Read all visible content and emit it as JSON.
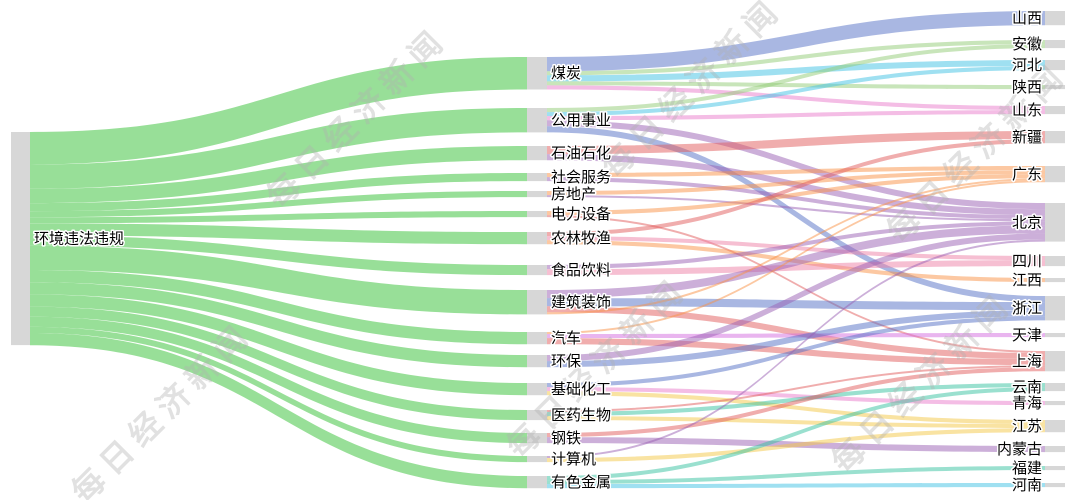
{
  "watermark": {
    "text": "每日经济新闻",
    "color": "rgba(175,175,175,0.38)"
  },
  "chart_data": {
    "type": "sankey",
    "title": "",
    "root": "环境违法违规",
    "industries": [
      "煤炭",
      "公用事业",
      "石油石化",
      "社会服务",
      "房地产",
      "电力设备",
      "农林牧渔",
      "食品饮料",
      "建筑装饰",
      "汽车",
      "环保",
      "基础化工",
      "医药生物",
      "钢铁",
      "计算机",
      "有色金属"
    ],
    "provinces": [
      "山西",
      "安徽",
      "河北",
      "陕西",
      "山东",
      "新疆",
      "广东",
      "北京",
      "四川",
      "江西",
      "浙江",
      "天津",
      "上海",
      "云南",
      "青海",
      "江苏",
      "内蒙古",
      "福建",
      "河南"
    ],
    "node_color": "#d7d7d7",
    "label_color": "#000000",
    "flow_color_level1": "#98df98",
    "province_colors": {
      "山西": "#5470c6",
      "安徽": "#91cc75",
      "河北": "#3fc1e4",
      "陕西": "#91cc75",
      "山东": "#ea7ccc",
      "新疆": "#e25b5b",
      "广东": "#fa9145",
      "北京": "#9a60b4",
      "四川": "#ee7fa5",
      "江西": "#fa9145",
      "浙江": "#5470c6",
      "天津": "#d36bdf",
      "上海": "#e25b5b",
      "云南": "#35c2a0",
      "青海": "#ea7ccc",
      "江苏": "#f3c846",
      "内蒙古": "#9a60b4",
      "福建": "#35c2a0",
      "河南": "#3fc1e4"
    },
    "links": [
      {
        "source": "环境违法违规",
        "target": "煤炭",
        "value": 16
      },
      {
        "source": "环境违法违规",
        "target": "公用事业",
        "value": 12
      },
      {
        "source": "环境违法违规",
        "target": "石油石化",
        "value": 7
      },
      {
        "source": "环境违法违规",
        "target": "社会服务",
        "value": 4
      },
      {
        "source": "环境违法违规",
        "target": "房地产",
        "value": 3
      },
      {
        "source": "环境违法违规",
        "target": "电力设备",
        "value": 3
      },
      {
        "source": "环境违法违规",
        "target": "农林牧渔",
        "value": 6
      },
      {
        "source": "环境违法违规",
        "target": "食品饮料",
        "value": 5
      },
      {
        "source": "环境违法违规",
        "target": "建筑装饰",
        "value": 12
      },
      {
        "source": "环境违法违规",
        "target": "汽车",
        "value": 6
      },
      {
        "source": "环境违法违规",
        "target": "环保",
        "value": 6
      },
      {
        "source": "环境违法违规",
        "target": "基础化工",
        "value": 6
      },
      {
        "source": "环境违法违规",
        "target": "医药生物",
        "value": 5
      },
      {
        "source": "环境违法违规",
        "target": "钢铁",
        "value": 5
      },
      {
        "source": "环境违法违规",
        "target": "计算机",
        "value": 3
      },
      {
        "source": "环境违法违规",
        "target": "有色金属",
        "value": 6
      },
      {
        "source": "煤炭",
        "target": "山西",
        "value": 7
      },
      {
        "source": "煤炭",
        "target": "安徽",
        "value": 2
      },
      {
        "source": "煤炭",
        "target": "河北",
        "value": 3
      },
      {
        "source": "煤炭",
        "target": "陕西",
        "value": 2
      },
      {
        "source": "煤炭",
        "target": "山东",
        "value": 2
      },
      {
        "source": "公用事业",
        "target": "安徽",
        "value": 2
      },
      {
        "source": "公用事业",
        "target": "河北",
        "value": 2
      },
      {
        "source": "公用事业",
        "target": "山东",
        "value": 2
      },
      {
        "source": "公用事业",
        "target": "北京",
        "value": 3
      },
      {
        "source": "公用事业",
        "target": "浙江",
        "value": 3
      },
      {
        "source": "石油石化",
        "target": "新疆",
        "value": 4
      },
      {
        "source": "石油石化",
        "target": "北京",
        "value": 3
      },
      {
        "source": "社会服务",
        "target": "广东",
        "value": 2
      },
      {
        "source": "社会服务",
        "target": "北京",
        "value": 2
      },
      {
        "source": "房地产",
        "target": "广东",
        "value": 2
      },
      {
        "source": "房地产",
        "target": "北京",
        "value": 1
      },
      {
        "source": "电力设备",
        "target": "广东",
        "value": 2
      },
      {
        "source": "电力设备",
        "target": "上海",
        "value": 1
      },
      {
        "source": "农林牧渔",
        "target": "新疆",
        "value": 2
      },
      {
        "source": "农林牧渔",
        "target": "四川",
        "value": 2
      },
      {
        "source": "农林牧渔",
        "target": "江西",
        "value": 2
      },
      {
        "source": "食品饮料",
        "target": "北京",
        "value": 2
      },
      {
        "source": "食品饮料",
        "target": "四川",
        "value": 3
      },
      {
        "source": "建筑装饰",
        "target": "北京",
        "value": 4
      },
      {
        "source": "建筑装饰",
        "target": "浙江",
        "value": 4
      },
      {
        "source": "建筑装饰",
        "target": "上海",
        "value": 3
      },
      {
        "source": "建筑装饰",
        "target": "广东",
        "value": 1
      },
      {
        "source": "汽车",
        "target": "广东",
        "value": 1
      },
      {
        "source": "汽车",
        "target": "天津",
        "value": 2
      },
      {
        "source": "汽车",
        "target": "上海",
        "value": 3
      },
      {
        "source": "环保",
        "target": "北京",
        "value": 3
      },
      {
        "source": "环保",
        "target": "浙江",
        "value": 3
      },
      {
        "source": "基础化工",
        "target": "浙江",
        "value": 2
      },
      {
        "source": "基础化工",
        "target": "青海",
        "value": 2
      },
      {
        "source": "基础化工",
        "target": "江苏",
        "value": 2
      },
      {
        "source": "医药生物",
        "target": "上海",
        "value": 1
      },
      {
        "source": "医药生物",
        "target": "云南",
        "value": 2
      },
      {
        "source": "医药生物",
        "target": "江苏",
        "value": 2
      },
      {
        "source": "钢铁",
        "target": "上海",
        "value": 2
      },
      {
        "source": "钢铁",
        "target": "内蒙古",
        "value": 3
      },
      {
        "source": "计算机",
        "target": "北京",
        "value": 1
      },
      {
        "source": "计算机",
        "target": "江苏",
        "value": 2
      },
      {
        "source": "有色金属",
        "target": "云南",
        "value": 2
      },
      {
        "source": "有色金属",
        "target": "福建",
        "value": 2
      },
      {
        "source": "有色金属",
        "target": "河南",
        "value": 2
      }
    ]
  }
}
